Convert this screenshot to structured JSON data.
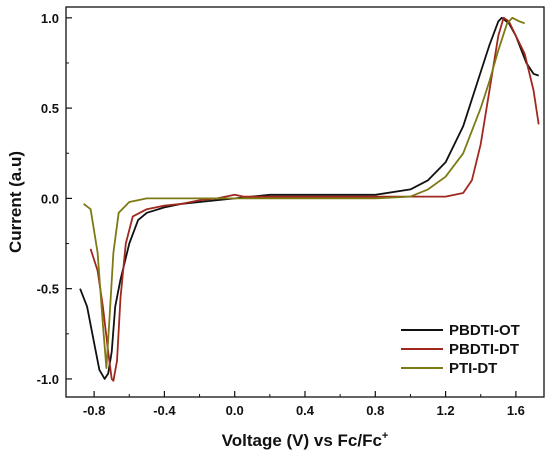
{
  "chart_data": {
    "type": "line",
    "xlabel": "Voltage (V) vs Fc/Fc",
    "xlabel_superscript": "+",
    "ylabel": "Current (a.u)",
    "xlim": [
      -0.96,
      1.76
    ],
    "ylim": [
      -1.1,
      1.06
    ],
    "x_ticks": [
      -0.8,
      -0.4,
      0.0,
      0.4,
      0.8,
      1.2,
      1.6
    ],
    "x_tick_labels": [
      "-0.8",
      "-0.4",
      "0.0",
      "0.4",
      "0.8",
      "1.2",
      "1.6"
    ],
    "y_ticks": [
      -1.0,
      -0.5,
      0.0,
      0.5,
      1.0
    ],
    "y_tick_labels": [
      "-1.0",
      "-0.5",
      "0.0",
      "0.5",
      "1.0"
    ],
    "grid": false,
    "legend_position": "bottom-right",
    "series": [
      {
        "name": "PBDTI-OT",
        "color": "#111111",
        "points": [
          [
            -0.88,
            -0.5
          ],
          [
            -0.84,
            -0.6
          ],
          [
            -0.8,
            -0.8
          ],
          [
            -0.77,
            -0.95
          ],
          [
            -0.74,
            -1.0
          ],
          [
            -0.72,
            -0.97
          ],
          [
            -0.7,
            -0.85
          ],
          [
            -0.68,
            -0.6
          ],
          [
            -0.65,
            -0.45
          ],
          [
            -0.6,
            -0.25
          ],
          [
            -0.55,
            -0.12
          ],
          [
            -0.5,
            -0.08
          ],
          [
            -0.4,
            -0.05
          ],
          [
            -0.3,
            -0.03
          ],
          [
            -0.2,
            -0.02
          ],
          [
            0.0,
            0.0
          ],
          [
            0.2,
            0.02
          ],
          [
            0.4,
            0.02
          ],
          [
            0.6,
            0.02
          ],
          [
            0.8,
            0.02
          ],
          [
            1.0,
            0.05
          ],
          [
            1.1,
            0.1
          ],
          [
            1.2,
            0.2
          ],
          [
            1.3,
            0.4
          ],
          [
            1.4,
            0.7
          ],
          [
            1.45,
            0.85
          ],
          [
            1.5,
            0.98
          ],
          [
            1.52,
            1.0
          ],
          [
            1.56,
            0.97
          ],
          [
            1.6,
            0.9
          ],
          [
            1.66,
            0.75
          ],
          [
            1.7,
            0.69
          ],
          [
            1.73,
            0.68
          ]
        ]
      },
      {
        "name": "PBDTI-DT",
        "color": "#a0281e",
        "points": [
          [
            -0.82,
            -0.28
          ],
          [
            -0.78,
            -0.4
          ],
          [
            -0.75,
            -0.6
          ],
          [
            -0.72,
            -0.85
          ],
          [
            -0.7,
            -1.0
          ],
          [
            -0.69,
            -1.01
          ],
          [
            -0.67,
            -0.9
          ],
          [
            -0.65,
            -0.55
          ],
          [
            -0.62,
            -0.25
          ],
          [
            -0.58,
            -0.1
          ],
          [
            -0.5,
            -0.06
          ],
          [
            -0.4,
            -0.04
          ],
          [
            -0.3,
            -0.03
          ],
          [
            -0.2,
            -0.01
          ],
          [
            -0.1,
            0.0
          ],
          [
            0.0,
            0.02
          ],
          [
            0.05,
            0.01
          ],
          [
            0.2,
            0.01
          ],
          [
            0.4,
            0.01
          ],
          [
            0.6,
            0.01
          ],
          [
            0.8,
            0.01
          ],
          [
            1.0,
            0.01
          ],
          [
            1.2,
            0.01
          ],
          [
            1.3,
            0.03
          ],
          [
            1.35,
            0.1
          ],
          [
            1.4,
            0.3
          ],
          [
            1.45,
            0.6
          ],
          [
            1.5,
            0.9
          ],
          [
            1.53,
            1.0
          ],
          [
            1.56,
            0.98
          ],
          [
            1.6,
            0.9
          ],
          [
            1.65,
            0.8
          ],
          [
            1.7,
            0.6
          ],
          [
            1.73,
            0.41
          ]
        ]
      },
      {
        "name": "PTI-DT",
        "color": "#7d7a14",
        "points": [
          [
            -0.86,
            -0.03
          ],
          [
            -0.82,
            -0.06
          ],
          [
            -0.78,
            -0.3
          ],
          [
            -0.75,
            -0.7
          ],
          [
            -0.73,
            -0.94
          ],
          [
            -0.715,
            -0.7
          ],
          [
            -0.69,
            -0.3
          ],
          [
            -0.66,
            -0.08
          ],
          [
            -0.6,
            -0.02
          ],
          [
            -0.5,
            0.0
          ],
          [
            -0.3,
            0.0
          ],
          [
            0.0,
            0.0
          ],
          [
            0.4,
            0.0
          ],
          [
            0.8,
            0.0
          ],
          [
            1.0,
            0.01
          ],
          [
            1.1,
            0.05
          ],
          [
            1.2,
            0.12
          ],
          [
            1.3,
            0.25
          ],
          [
            1.4,
            0.5
          ],
          [
            1.45,
            0.65
          ],
          [
            1.5,
            0.82
          ],
          [
            1.55,
            0.97
          ],
          [
            1.58,
            1.0
          ],
          [
            1.62,
            0.98
          ],
          [
            1.65,
            0.97
          ]
        ]
      }
    ]
  }
}
